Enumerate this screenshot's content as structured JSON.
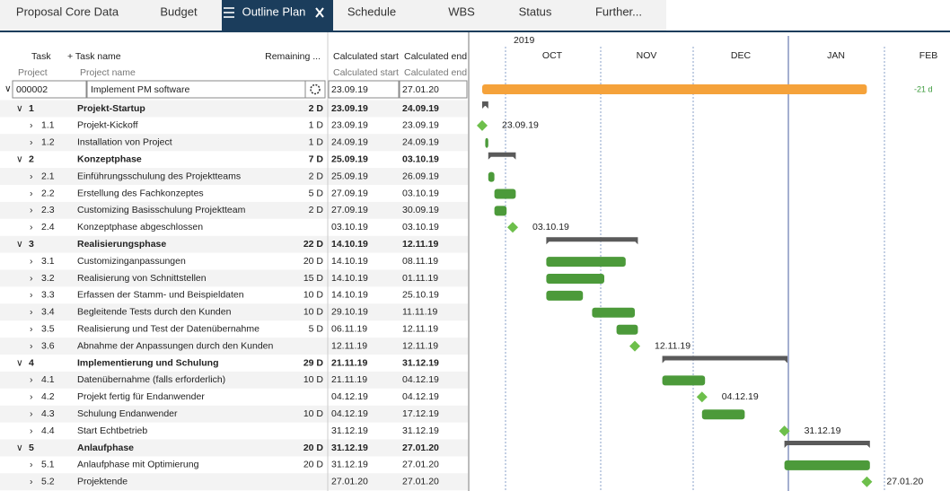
{
  "tabs": [
    "Proposal Core Data",
    "Budget",
    "Outline Plan",
    "Schedule",
    "WBS",
    "Status",
    "Further..."
  ],
  "headers": {
    "task": "Task",
    "task_name": "+ Task name",
    "remaining": "Remaining ...",
    "calc_start": "Calculated start",
    "calc_end": "Calculated end",
    "project": "Project",
    "project_name": "Project name",
    "calc_start_2": "Calculated start",
    "calc_end_2": "Calculated end"
  },
  "timeline": {
    "year": "2019",
    "months": [
      "OCT",
      "NOV",
      "DEC",
      "JAN",
      "FEB"
    ]
  },
  "project": {
    "id": "000002",
    "name": "Implement PM software",
    "start": "23.09.19",
    "end": "27.01.20",
    "gantt_label": "-21 d"
  },
  "rows": [
    {
      "id": "1",
      "name": "Projekt-Startup",
      "remaining": "2 D",
      "start": "23.09.19",
      "end": "24.09.19",
      "summary": true
    },
    {
      "id": "1.1",
      "name": "Projekt-Kickoff",
      "remaining": "1 D",
      "start": "23.09.19",
      "end": "23.09.19",
      "gantt_label": "23.09.19"
    },
    {
      "id": "1.2",
      "name": "Installation von Project",
      "remaining": "1 D",
      "start": "24.09.19",
      "end": "24.09.19"
    },
    {
      "id": "2",
      "name": "Konzeptphase",
      "remaining": "7 D",
      "start": "25.09.19",
      "end": "03.10.19",
      "summary": true
    },
    {
      "id": "2.1",
      "name": "Einführungsschulung des Projektteams",
      "remaining": "2 D",
      "start": "25.09.19",
      "end": "26.09.19"
    },
    {
      "id": "2.2",
      "name": "Erstellung des Fachkonzeptes",
      "remaining": "5 D",
      "start": "27.09.19",
      "end": "03.10.19"
    },
    {
      "id": "2.3",
      "name": "Customizing Basisschulung Projektteam",
      "remaining": "2 D",
      "start": "27.09.19",
      "end": "30.09.19"
    },
    {
      "id": "2.4",
      "name": "Konzeptphase abgeschlossen",
      "start": "03.10.19",
      "end": "03.10.19",
      "gantt_label": "03.10.19"
    },
    {
      "id": "3",
      "name": "Realisierungsphase",
      "remaining": "22 D",
      "start": "14.10.19",
      "end": "12.11.19",
      "summary": true
    },
    {
      "id": "3.1",
      "name": "Customizinganpassungen",
      "remaining": "20 D",
      "start": "14.10.19",
      "end": "08.11.19"
    },
    {
      "id": "3.2",
      "name": "Realisierung von Schnittstellen",
      "remaining": "15 D",
      "start": "14.10.19",
      "end": "01.11.19"
    },
    {
      "id": "3.3",
      "name": "Erfassen der Stamm- und Beispieldaten",
      "remaining": "10 D",
      "start": "14.10.19",
      "end": "25.10.19"
    },
    {
      "id": "3.4",
      "name": "Begleitende Tests durch den Kunden",
      "remaining": "10 D",
      "start": "29.10.19",
      "end": "11.11.19"
    },
    {
      "id": "3.5",
      "name": "Realisierung und Test der Datenübernahme",
      "remaining": "5 D",
      "start": "06.11.19",
      "end": "12.11.19"
    },
    {
      "id": "3.6",
      "name": "Abnahme der Anpassungen durch den Kunden",
      "start": "12.11.19",
      "end": "12.11.19",
      "gantt_label": "12.11.19"
    },
    {
      "id": "4",
      "name": "Implementierung und Schulung",
      "remaining": "29 D",
      "start": "21.11.19",
      "end": "31.12.19",
      "summary": true
    },
    {
      "id": "4.1",
      "name": "Datenübernahme (falls erforderlich)",
      "remaining": "10 D",
      "start": "21.11.19",
      "end": "04.12.19"
    },
    {
      "id": "4.2",
      "name": "Projekt fertig für Endanwender",
      "start": "04.12.19",
      "end": "04.12.19",
      "gantt_label": "04.12.19"
    },
    {
      "id": "4.3",
      "name": "Schulung Endanwender",
      "remaining": "10 D",
      "start": "04.12.19",
      "end": "17.12.19"
    },
    {
      "id": "4.4",
      "name": "Start Echtbetrieb",
      "start": "31.12.19",
      "end": "31.12.19",
      "gantt_label": "31.12.19"
    },
    {
      "id": "5",
      "name": "Anlaufphase",
      "remaining": "20 D",
      "start": "31.12.19",
      "end": "27.01.20",
      "summary": true
    },
    {
      "id": "5.1",
      "name": "Anlaufphase mit Optimierung",
      "remaining": "20 D",
      "start": "31.12.19",
      "end": "27.01.20"
    },
    {
      "id": "5.2",
      "name": "Projektende",
      "start": "27.01.20",
      "end": "27.01.20",
      "gantt_label": "27.01.20"
    }
  ]
}
